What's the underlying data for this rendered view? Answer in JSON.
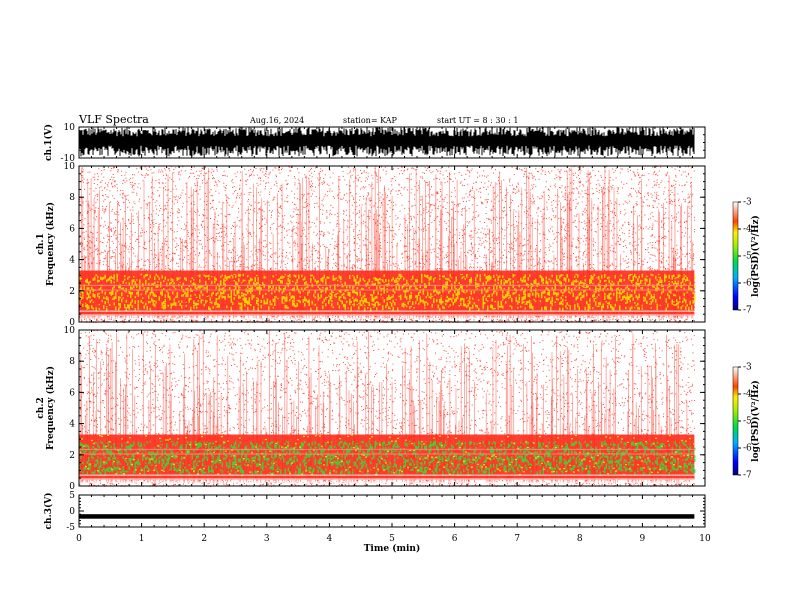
{
  "header": {
    "title": "VLF Spectra",
    "date": "Aug.16, 2024",
    "station": "station= KAP",
    "start": "start  UT =   8  : 30 : 1"
  },
  "chart_data": [
    {
      "type": "line",
      "panel": "ch.1 waveform",
      "ylabel": "ch.1(V)",
      "ylim": [
        -10,
        10
      ],
      "yticks": [
        "10",
        "-10"
      ],
      "xlim": [
        0,
        10
      ]
    },
    {
      "type": "heatmap",
      "panel": "ch.1 spectrogram",
      "ylabel": "ch.1 Frequency (kHz)",
      "ylim": [
        0,
        10
      ],
      "yticks": [
        "0",
        "2",
        "4",
        "6",
        "8",
        "10"
      ],
      "xlim": [
        0,
        10
      ],
      "colorbar": {
        "label": "log(PSD)(V²/Hz)",
        "ticks": [
          "-3",
          "-4",
          "-5",
          "-6",
          "-7"
        ],
        "range": [
          -7,
          -3
        ]
      }
    },
    {
      "type": "heatmap",
      "panel": "ch.2 spectrogram",
      "ylabel": "ch.2 Frequency (kHz)",
      "ylim": [
        0,
        10
      ],
      "yticks": [
        "0",
        "2",
        "4",
        "6",
        "8",
        "10"
      ],
      "xlim": [
        0,
        10
      ],
      "colorbar": {
        "label": "log(PSD)(V²/Hz)",
        "ticks": [
          "-3",
          "-4",
          "-5",
          "-6",
          "-7"
        ],
        "range": [
          -7,
          -3
        ]
      }
    },
    {
      "type": "line",
      "panel": "ch.3 waveform",
      "ylabel": "ch.3(V)",
      "ylim": [
        -5,
        5
      ],
      "yticks": [
        "5",
        "0",
        "-5"
      ],
      "xlim": [
        0,
        10
      ]
    }
  ],
  "xaxis": {
    "label": "Time (min)",
    "ticks": [
      "0",
      "1",
      "2",
      "3",
      "4",
      "5",
      "6",
      "7",
      "8",
      "9",
      "10"
    ],
    "data_end": 9.83
  },
  "colors": {
    "waveform": "#000000",
    "spec_bg": "#ffffff",
    "spec_red": "#ff2a1a",
    "spec_yellow": "#f2e600",
    "spec_green": "#33dd33"
  }
}
